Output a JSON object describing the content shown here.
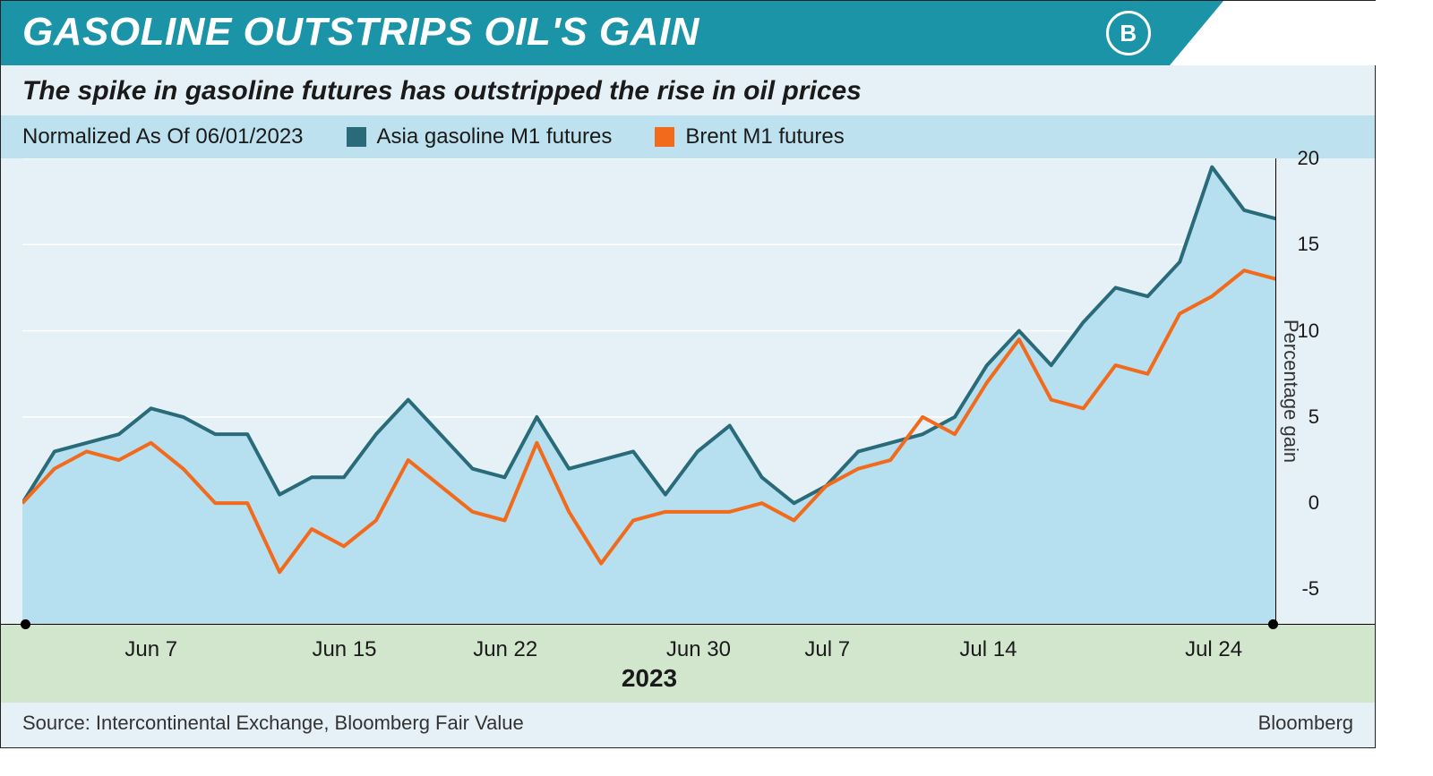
{
  "banner": {
    "title": "GASOLINE OUTSTRIPS OIL'S GAIN",
    "logo_letter": "B",
    "bg_color": "#1b94a8",
    "text_color": "#ffffff"
  },
  "subtitle": "The spike in gasoline futures has outstripped the rise in oil prices",
  "legend": {
    "bg_color": "#bde1ee",
    "note": "Normalized As Of 06/01/2023",
    "series": [
      {
        "key": "gasoline",
        "label": "Asia gasoline M1 futures",
        "color": "#2a6b7a"
      },
      {
        "key": "brent",
        "label": "Brent M1 futures",
        "color": "#f26a1b"
      }
    ]
  },
  "chart": {
    "type": "line-area",
    "background_color": "#e5f1f6",
    "area_fill_color": "#b6dfef",
    "grid_color": "#ffffff",
    "axis_color": "#000000",
    "y_axis": {
      "title": "Percentage gain",
      "min": -7,
      "max": 20,
      "ticks": [
        -5,
        0,
        5,
        10,
        15,
        20
      ],
      "tick_fontsize": 22
    },
    "x_axis": {
      "strip_color": "#d2e6cd",
      "year": "2023",
      "tick_indices": [
        4,
        10,
        15,
        21,
        25,
        30,
        37
      ],
      "tick_labels": [
        "Jun 7",
        "Jun 15",
        "Jun 22",
        "Jun 30",
        "Jul 7",
        "Jul 14",
        "Jul 24"
      ],
      "label_fontsize": 24,
      "year_fontsize": 28
    },
    "series_data": {
      "gasoline": {
        "color": "#2a6b7a",
        "line_width": 4,
        "fill": true,
        "values": [
          0,
          3,
          3.5,
          4,
          5.5,
          5,
          4,
          4,
          0.5,
          1.5,
          1.5,
          4,
          6,
          4,
          2,
          1.5,
          5,
          2,
          2.5,
          3,
          0.5,
          3,
          4.5,
          1.5,
          0,
          1,
          3,
          3.5,
          4,
          5,
          8,
          10,
          8,
          10.5,
          12.5,
          12,
          14,
          19.5,
          17,
          16.5
        ]
      },
      "brent": {
        "color": "#f26a1b",
        "line_width": 4,
        "fill": false,
        "values": [
          0,
          2,
          3,
          2.5,
          3.5,
          2,
          0,
          0,
          -4,
          -1.5,
          -2.5,
          -1,
          2.5,
          1,
          -0.5,
          -1,
          3.5,
          -0.5,
          -3.5,
          -1,
          -0.5,
          -0.5,
          -0.5,
          0,
          -1,
          1,
          2,
          2.5,
          5,
          4,
          7,
          9.5,
          6,
          5.5,
          8,
          7.5,
          11,
          12,
          13.5,
          13
        ]
      }
    },
    "n_points": 40
  },
  "source": {
    "left": "Source: Intercontinental Exchange, Bloomberg Fair Value",
    "right": "Bloomberg"
  }
}
